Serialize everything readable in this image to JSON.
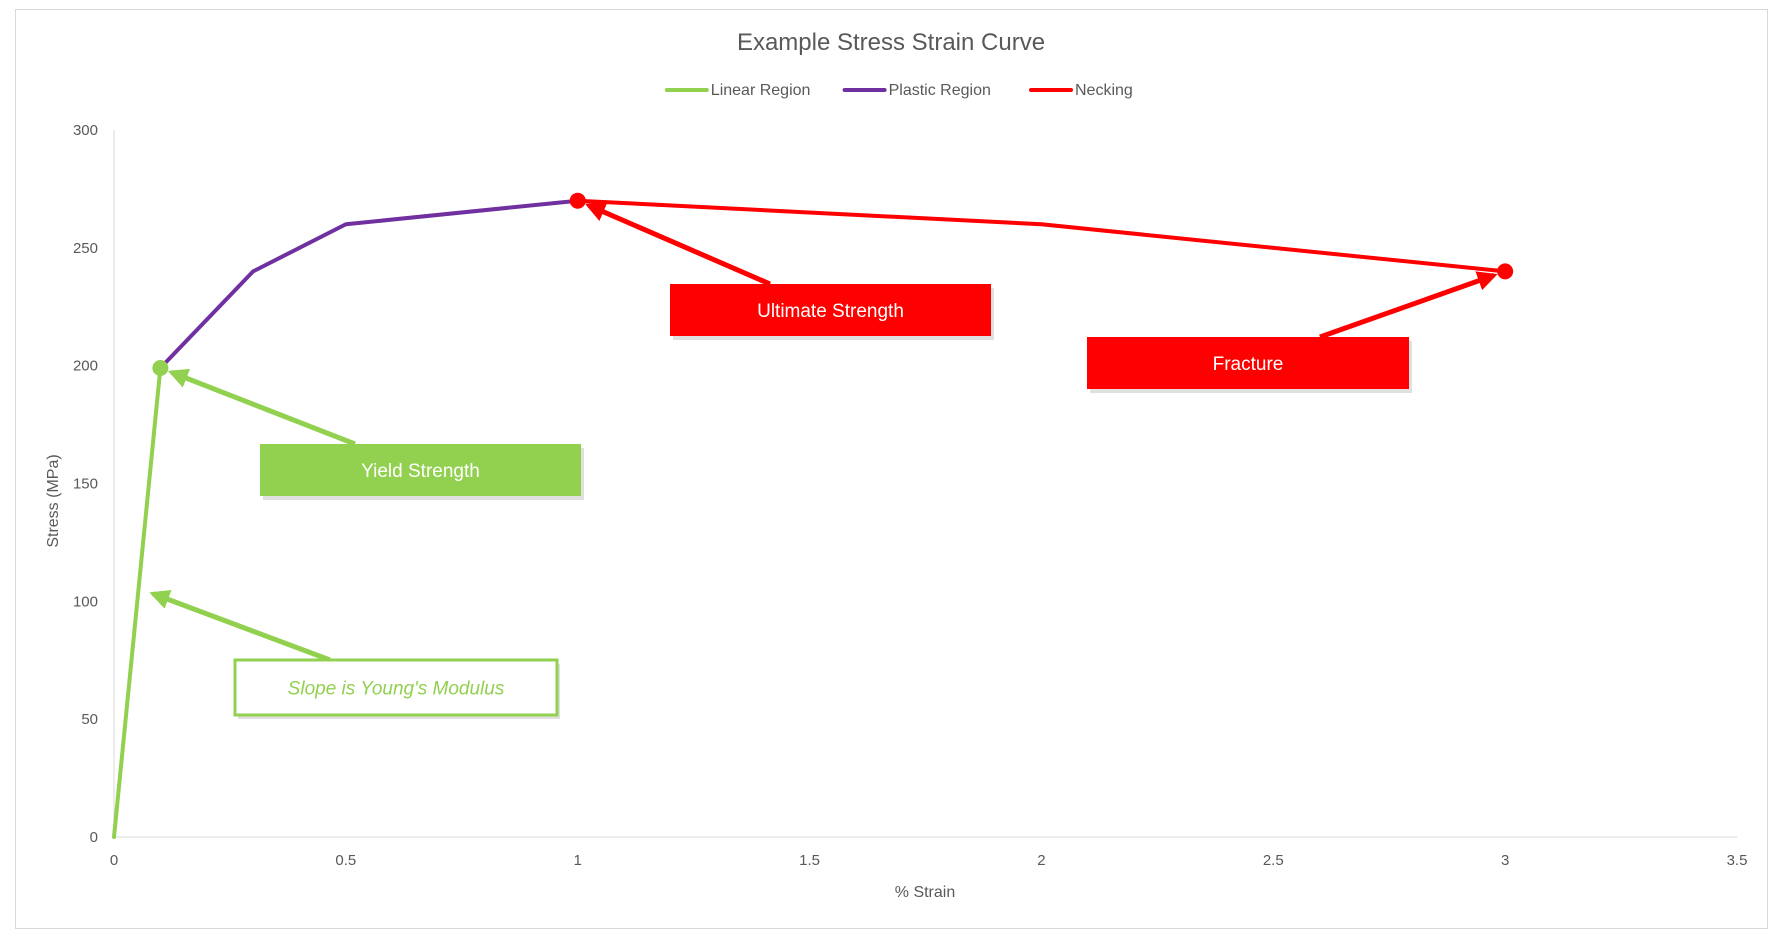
{
  "chart_data": {
    "type": "line",
    "title": "Example Stress Strain Curve",
    "xlabel": "% Strain",
    "ylabel": "Stress (MPa)",
    "xlim": [
      0,
      3.5
    ],
    "ylim": [
      0,
      300
    ],
    "x_ticks": [
      0,
      0.5,
      1,
      1.5,
      2,
      2.5,
      3,
      3.5
    ],
    "y_ticks": [
      0,
      50,
      100,
      150,
      200,
      250,
      300
    ],
    "grid": false,
    "legend_position": "top",
    "series": [
      {
        "name": "Linear Region",
        "color": "#92d050",
        "x": [
          0,
          0.1
        ],
        "y": [
          0,
          199
        ]
      },
      {
        "name": "Plastic Region",
        "color": "#7030a0",
        "x": [
          0.1,
          0.3,
          0.5,
          1.0
        ],
        "y": [
          199,
          240,
          260,
          270
        ]
      },
      {
        "name": "Necking",
        "color": "#ff0000",
        "x": [
          1.0,
          2.0,
          3.0
        ],
        "y": [
          270,
          260,
          240
        ]
      }
    ],
    "markers": [
      {
        "x": 0.1,
        "y": 199,
        "color": "#92d050"
      },
      {
        "x": 1.0,
        "y": 270,
        "color": "#ff0000"
      },
      {
        "x": 3.0,
        "y": 240,
        "color": "#ff0000"
      }
    ],
    "annotations": [
      {
        "text": "Yield Strength",
        "target_x": 0.1,
        "target_y": 199,
        "color": "#92d050",
        "style": "filled"
      },
      {
        "text": "Slope is Young's Modulus",
        "target_x": 0.06,
        "target_y": 105,
        "color": "#92d050",
        "style": "outline"
      },
      {
        "text": "Ultimate Strength",
        "target_x": 1.0,
        "target_y": 270,
        "color": "#ff0000",
        "style": "filled"
      },
      {
        "text": "Fracture",
        "target_x": 3.0,
        "target_y": 240,
        "color": "#ff0000",
        "style": "filled"
      }
    ]
  }
}
